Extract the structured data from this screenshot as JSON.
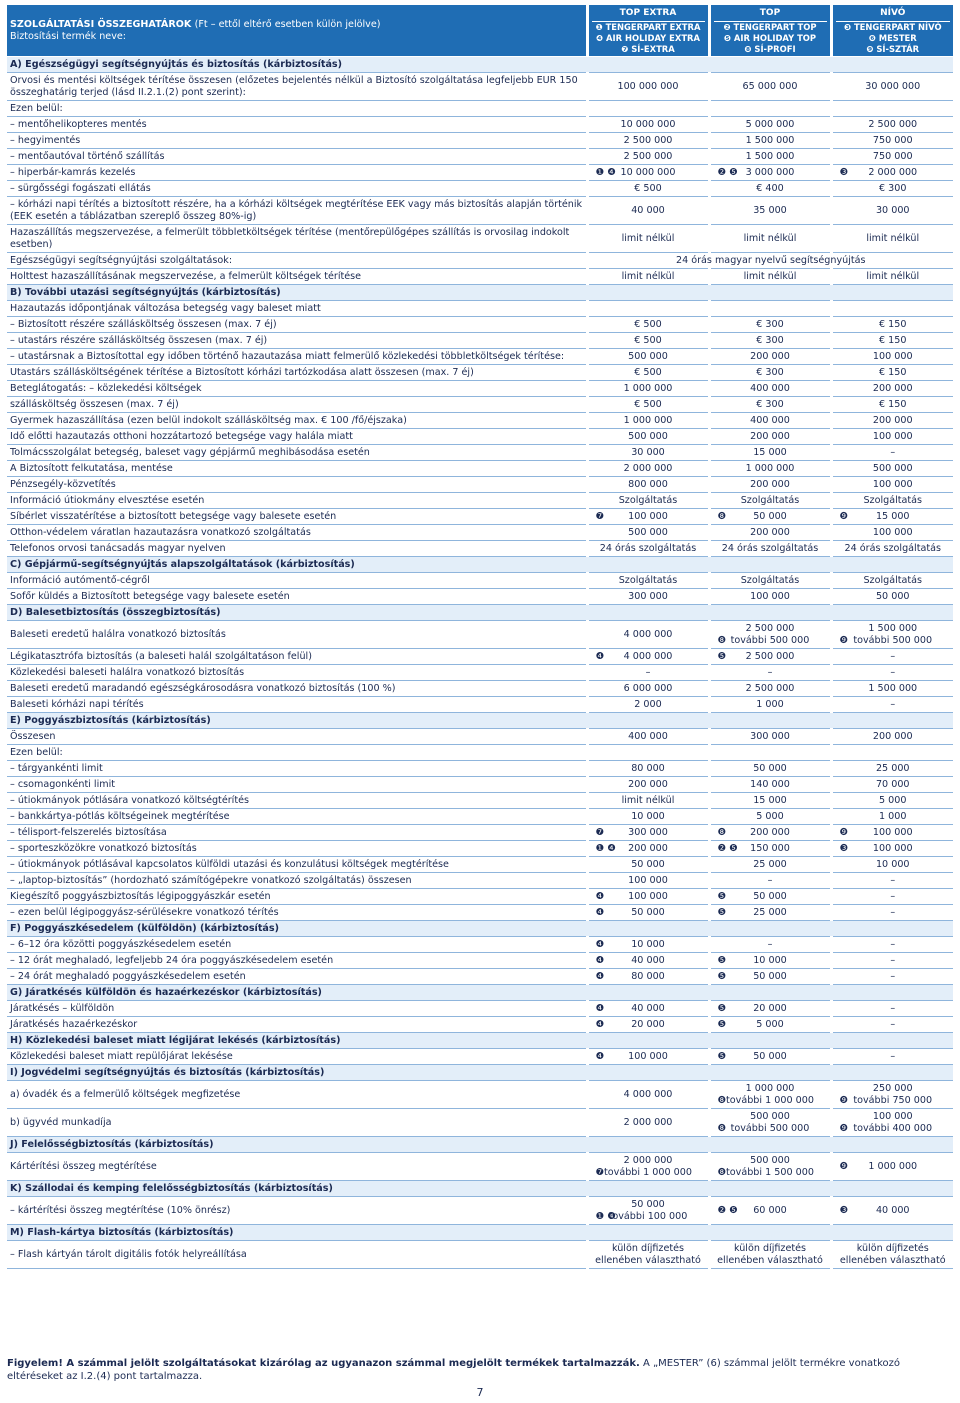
{
  "header": {
    "title": "SZOLGÁLTATÁSI ÖSSZEGHATÁROK",
    "title_note": "(Ft – ettől eltérő esetben külön jelölve)",
    "product_label": "Biztosítási termék neve:",
    "columns": [
      {
        "name": "TOP EXTRA",
        "products": [
          "❶ TENGERPART EXTRA",
          "❹ AIR HOLIDAY EXTRA",
          "❼ SÍ-EXTRA"
        ]
      },
      {
        "name": "TOP",
        "products": [
          "❷ TENGERPART TOP",
          "❺ AIR HOLIDAY TOP",
          "❽ SÍ-PROFI"
        ]
      },
      {
        "name": "NÍVÓ",
        "products": [
          "❸ TENGERPART NÍVÓ",
          "❻ MESTER",
          "❾ SÍ-SZTÁR"
        ]
      }
    ]
  },
  "rows": [
    {
      "section": "A) Egészségügyi segítségnyújtás és biztosítás (kárbiztosítás)"
    },
    {
      "label": "Orvosi és mentési költségek térítése összesen (előzetes bejelentés nélkül a Biztosító szolgáltatása legfeljebb EUR 150 összeghatárig terjed (lásd II.2.1.(2) pont szerint):",
      "cells": [
        "100 000 000",
        "65 000 000",
        "30 000 000"
      ]
    },
    {
      "label": "Ezen belül:"
    },
    {
      "label": "– mentőhelikopteres mentés",
      "cells": [
        "10 000 000",
        "5 000 000",
        "2 500 000"
      ]
    },
    {
      "label": "– hegyimentés",
      "cells": [
        "2 500 000",
        "1 500 000",
        "750 000"
      ]
    },
    {
      "label": "– mentőautóval történő szállítás",
      "cells": [
        "2 500 000",
        "1 500 000",
        "750 000"
      ]
    },
    {
      "label": "– hiperbár-kamrás kezelés",
      "cells": [
        {
          "marker": "❶ ❹",
          "text": "10 000 000"
        },
        {
          "marker": "❷ ❺",
          "text": "3 000 000"
        },
        {
          "marker": "❸",
          "text": "2 000 000"
        }
      ]
    },
    {
      "label": "– sürgősségi fogászati ellátás",
      "cells": [
        "€ 500",
        "€ 400",
        "€ 300"
      ]
    },
    {
      "label": "– kórházi napi térítés a biztosított részére, ha a kórházi költségek megtérítése EEK vagy más biztosítás alapján történik (EEK esetén a táblázatban szereplő összeg 80%-ig)",
      "cells": [
        "40 000",
        "35 000",
        "30 000"
      ]
    },
    {
      "label": "Hazaszállítás megszervezése, a felmerült többletköltségek térítése (mentőrepülőgépes szállítás is orvosilag indokolt esetben)",
      "cells": [
        "limit nélkül",
        "limit nélkül",
        "limit nélkül"
      ]
    },
    {
      "label": "Egészségügyi segítségnyújtási szolgáltatások:",
      "span": "24 órás magyar nyelvű segítségnyújtás"
    },
    {
      "label": "Holttest hazaszállításának megszervezése, a felmerült költségek térítése",
      "cells": [
        "limit nélkül",
        "limit nélkül",
        "limit nélkül"
      ]
    },
    {
      "section": "B) További utazási segítségnyújtás (kárbiztosítás)"
    },
    {
      "label": "Hazautazás időpontjának változása betegség vagy baleset miatt"
    },
    {
      "label": "– Biztosított részére szállásköltség összesen (max. 7 éj)",
      "cells": [
        "€ 500",
        "€ 300",
        "€ 150"
      ]
    },
    {
      "label": "– utastárs részére szállásköltség összesen (max. 7 éj)",
      "cells": [
        "€ 500",
        "€ 300",
        "€ 150"
      ]
    },
    {
      "label": "– utastársnak a Biztosítottal egy időben történő hazautazása miatt felmerülő közlekedési többletköltségek térítése:",
      "cells": [
        "500 000",
        "200 000",
        "100 000"
      ]
    },
    {
      "label": "Utastárs szállásköltségének térítése a Biztosított kórházi tartózkodása alatt összesen (max. 7 éj)",
      "cells": [
        "€ 500",
        "€ 300",
        "€ 150"
      ]
    },
    {
      "label": "Beteglátogatás: – közlekedési költségek",
      "cells": [
        "1 000 000",
        "400 000",
        "200 000"
      ]
    },
    {
      "label": "szállásköltség összesen (max. 7 éj)",
      "cells": [
        "€ 500",
        "€ 300",
        "€ 150"
      ]
    },
    {
      "label": "Gyermek hazaszállítása (ezen belül indokolt szállásköltség max. € 100 /fő/éjszaka)",
      "cells": [
        "1 000 000",
        "400 000",
        "200 000"
      ]
    },
    {
      "label": "Idő előtti hazautazás otthoni hozzátartozó betegsége vagy halála miatt",
      "cells": [
        "500 000",
        "200 000",
        "100 000"
      ]
    },
    {
      "label": "Tolmácsszolgálat betegség, baleset vagy gépjármű meghibásodása esetén",
      "cells": [
        "30 000",
        "15 000",
        "–"
      ]
    },
    {
      "label": "A Biztosított felkutatása, mentése",
      "cells": [
        "2 000 000",
        "1 000 000",
        "500 000"
      ]
    },
    {
      "label": "Pénzsegély-közvetítés",
      "cells": [
        "800 000",
        "200 000",
        "100 000"
      ]
    },
    {
      "label": "Információ útiokmány elvesztése esetén",
      "cells": [
        "Szolgáltatás",
        "Szolgáltatás",
        "Szolgáltatás"
      ]
    },
    {
      "label": "Síbérlet visszatérítése a biztosított betegsége vagy balesete esetén",
      "cells": [
        {
          "marker": "❼",
          "text": "100 000"
        },
        {
          "marker": "❽",
          "text": "50 000"
        },
        {
          "marker": "❾",
          "text": "15 000"
        }
      ]
    },
    {
      "label": "Otthon-védelem váratlan hazautazásra vonatkozó szolgáltatás",
      "cells": [
        "500 000",
        "200 000",
        "100 000"
      ]
    },
    {
      "label": "Telefonos orvosi tanácsadás magyar nyelven",
      "cells": [
        "24 órás szolgáltatás",
        "24 órás szolgáltatás",
        "24 órás szolgáltatás"
      ]
    },
    {
      "section": "C) Gépjármű-segítségnyújtás alapszolgáltatások (kárbiztosítás)"
    },
    {
      "label": "Információ autómentő-cégről",
      "cells": [
        "Szolgáltatás",
        "Szolgáltatás",
        "Szolgáltatás"
      ]
    },
    {
      "label": "Sofőr küldés a Biztosított betegsége vagy balesete esetén",
      "cells": [
        "300 000",
        "100 000",
        "50 000"
      ]
    },
    {
      "section": "D) Balesetbiztosítás (összegbiztosítás)"
    },
    {
      "label": "Baleseti eredetű halálra vonatkozó biztosítás",
      "cells": [
        "4 000 000",
        [
          "2 500 000",
          {
            "marker": "❽",
            "text": "további 500 000"
          }
        ],
        [
          "1 500 000",
          {
            "marker": "❾",
            "text": "további 500 000"
          }
        ]
      ]
    },
    {
      "label": "Légikatasztrófa biztosítás (a baleseti halál szolgáltatáson felül)",
      "cells": [
        {
          "marker": "❹",
          "text": "4 000 000"
        },
        {
          "marker": "❺",
          "text": "2 500 000"
        },
        "–"
      ]
    },
    {
      "label": "Közlekedési baleseti halálra vonatkozó biztosítás",
      "cells": [
        "–",
        "–",
        "–"
      ]
    },
    {
      "label": "Baleseti eredetű maradandó egészségkárosodásra vonatkozó biztosítás (100 %)",
      "cells": [
        "6 000 000",
        "2 500 000",
        "1 500 000"
      ]
    },
    {
      "label": "Baleseti kórházi napi térítés",
      "cells": [
        "2 000",
        "1 000",
        "–"
      ]
    },
    {
      "section": "E) Poggyászbiztosítás (kárbiztosítás)"
    },
    {
      "label": "Összesen",
      "cells": [
        "400 000",
        "300 000",
        "200 000"
      ]
    },
    {
      "label": "Ezen belül:"
    },
    {
      "label": "– tárgyankénti limit",
      "cells": [
        "80 000",
        "50 000",
        "25 000"
      ]
    },
    {
      "label": "– csomagonkénti limit",
      "cells": [
        "200 000",
        "140 000",
        "70 000"
      ]
    },
    {
      "label": "– útiokmányok pótlására vonatkozó költségtérítés",
      "cells": [
        "limit nélkül",
        "15 000",
        "5 000"
      ]
    },
    {
      "label": "– bankkártya-pótlás költségeinek megtérítése",
      "cells": [
        "10 000",
        "5 000",
        "1 000"
      ]
    },
    {
      "label": "– télisport-felszerelés biztosítása",
      "cells": [
        {
          "marker": "❼",
          "text": "300 000"
        },
        {
          "marker": "❽",
          "text": "200 000"
        },
        {
          "marker": "❾",
          "text": "100 000"
        }
      ]
    },
    {
      "label": "– sporteszközökre vonatkozó biztosítás",
      "cells": [
        {
          "marker": "❶ ❹",
          "text": "200 000"
        },
        {
          "marker": "❷ ❺",
          "text": "150 000"
        },
        {
          "marker": "❸",
          "text": "100 000"
        }
      ]
    },
    {
      "label": "– útiokmányok pótlásával kapcsolatos külföldi utazási és konzulátusi költségek megtérítése",
      "cells": [
        "50 000",
        "25 000",
        "10 000"
      ]
    },
    {
      "label": "– „laptop-biztosítás” (hordozható számítógépekre vonatkozó szolgáltatás) összesen",
      "cells": [
        "100 000",
        "–",
        "–"
      ]
    },
    {
      "label": "Kiegészítő poggyászbiztosítás légipoggyászkár esetén",
      "cells": [
        {
          "marker": "❹",
          "text": "100 000"
        },
        {
          "marker": "❺",
          "text": "50 000"
        },
        "–"
      ]
    },
    {
      "label": "– ezen belül légipoggyász-sérülésekre vonatkozó térítés",
      "cells": [
        {
          "marker": "❹",
          "text": "50 000"
        },
        {
          "marker": "❺",
          "text": "25 000"
        },
        "–"
      ]
    },
    {
      "section": "F) Poggyászkésedelem (külföldön) (kárbiztosítás)"
    },
    {
      "label": "– 6–12 óra közötti poggyászkésedelem esetén",
      "cells": [
        {
          "marker": "❹",
          "text": "10 000"
        },
        "–",
        "–"
      ]
    },
    {
      "label": "– 12 órát meghaladó, legfeljebb 24 óra poggyászkésedelem esetén",
      "cells": [
        {
          "marker": "❹",
          "text": "40 000"
        },
        {
          "marker": "❺",
          "text": "10 000"
        },
        "–"
      ]
    },
    {
      "label": "– 24 órát meghaladó poggyászkésedelem esetén",
      "cells": [
        {
          "marker": "❹",
          "text": "80 000"
        },
        {
          "marker": "❺",
          "text": "50 000"
        },
        "–"
      ]
    },
    {
      "section": "G) Járatkésés külföldön és hazaérkezéskor (kárbiztosítás)"
    },
    {
      "label": "Járatkésés – külföldön",
      "cells": [
        {
          "marker": "❹",
          "text": "40 000"
        },
        {
          "marker": "❺",
          "text": "20 000"
        },
        "–"
      ]
    },
    {
      "label": "Járatkésés hazaérkezéskor",
      "cells": [
        {
          "marker": "❹",
          "text": "20 000"
        },
        {
          "marker": "❺",
          "text": "5 000"
        },
        "–"
      ]
    },
    {
      "section": "H) Közlekedési baleset miatt légijárat lekésés (kárbiztosítás)"
    },
    {
      "label": "Közlekedési baleset miatt repülőjárat lekésése",
      "cells": [
        {
          "marker": "❹",
          "text": "100 000"
        },
        {
          "marker": "❺",
          "text": "50 000"
        },
        "–"
      ]
    },
    {
      "section": "I) Jogvédelmi segítségnyújtás és biztosítás (kárbiztosítás)"
    },
    {
      "label": "a) óvadék és a felmerülő költségek megfizetése",
      "cells": [
        "4 000 000",
        [
          "1 000 000",
          {
            "marker": "❽",
            "text": "további 1 000 000"
          }
        ],
        [
          "250 000",
          {
            "marker": "❾",
            "text": "további 750 000"
          }
        ]
      ]
    },
    {
      "label": "b) ügyvéd munkadíja",
      "cells": [
        "2 000 000",
        [
          "500 000",
          {
            "marker": "❽",
            "text": "további 500 000"
          }
        ],
        [
          "100 000",
          {
            "marker": "❾",
            "text": "további 400 000"
          }
        ]
      ]
    },
    {
      "section": "J) Felelősségbiztosítás (kárbiztosítás)"
    },
    {
      "label": "Kártérítési összeg megtérítése",
      "cells": [
        [
          "2 000 000",
          {
            "marker": "❼",
            "text": "további 1 000 000"
          }
        ],
        [
          "500 000",
          {
            "marker": "❽",
            "text": "további 1 500 000"
          }
        ],
        {
          "marker": "❾",
          "text": "1 000 000"
        }
      ]
    },
    {
      "section": "K) Szállodai és kemping felelősségbiztosítás (kárbiztosítás)"
    },
    {
      "label": "– kártérítési összeg megtérítése (10% önrész)",
      "cells": [
        [
          "50 000",
          {
            "marker": "❶ ❹",
            "text": "további 100 000"
          }
        ],
        {
          "marker": "❷ ❺",
          "text": "60 000"
        },
        {
          "marker": "❸",
          "text": "40 000"
        }
      ]
    },
    {
      "section": "M) Flash-kártya biztosítás (kárbiztosítás)"
    },
    {
      "label": "– Flash kártyán tárolt digitális fotók helyreállítása",
      "cells": [
        [
          "külön díjfizetés",
          "ellenében választható"
        ],
        [
          "külön díjfizetés",
          "ellenében választható"
        ],
        [
          "külön díjfizetés",
          "ellenében választható"
        ]
      ]
    }
  ],
  "footer": {
    "warning": "Figyelem! A számmal jelölt szolgáltatásokat kizárólag az ugyanazon számmal megjelölt termékek tartalmazzák.",
    "note": "A „MESTER” (6) számmal jelölt termékre vonatkozó eltéréseket az I.2.(4) pont tartalmazza."
  },
  "page_number": "7"
}
